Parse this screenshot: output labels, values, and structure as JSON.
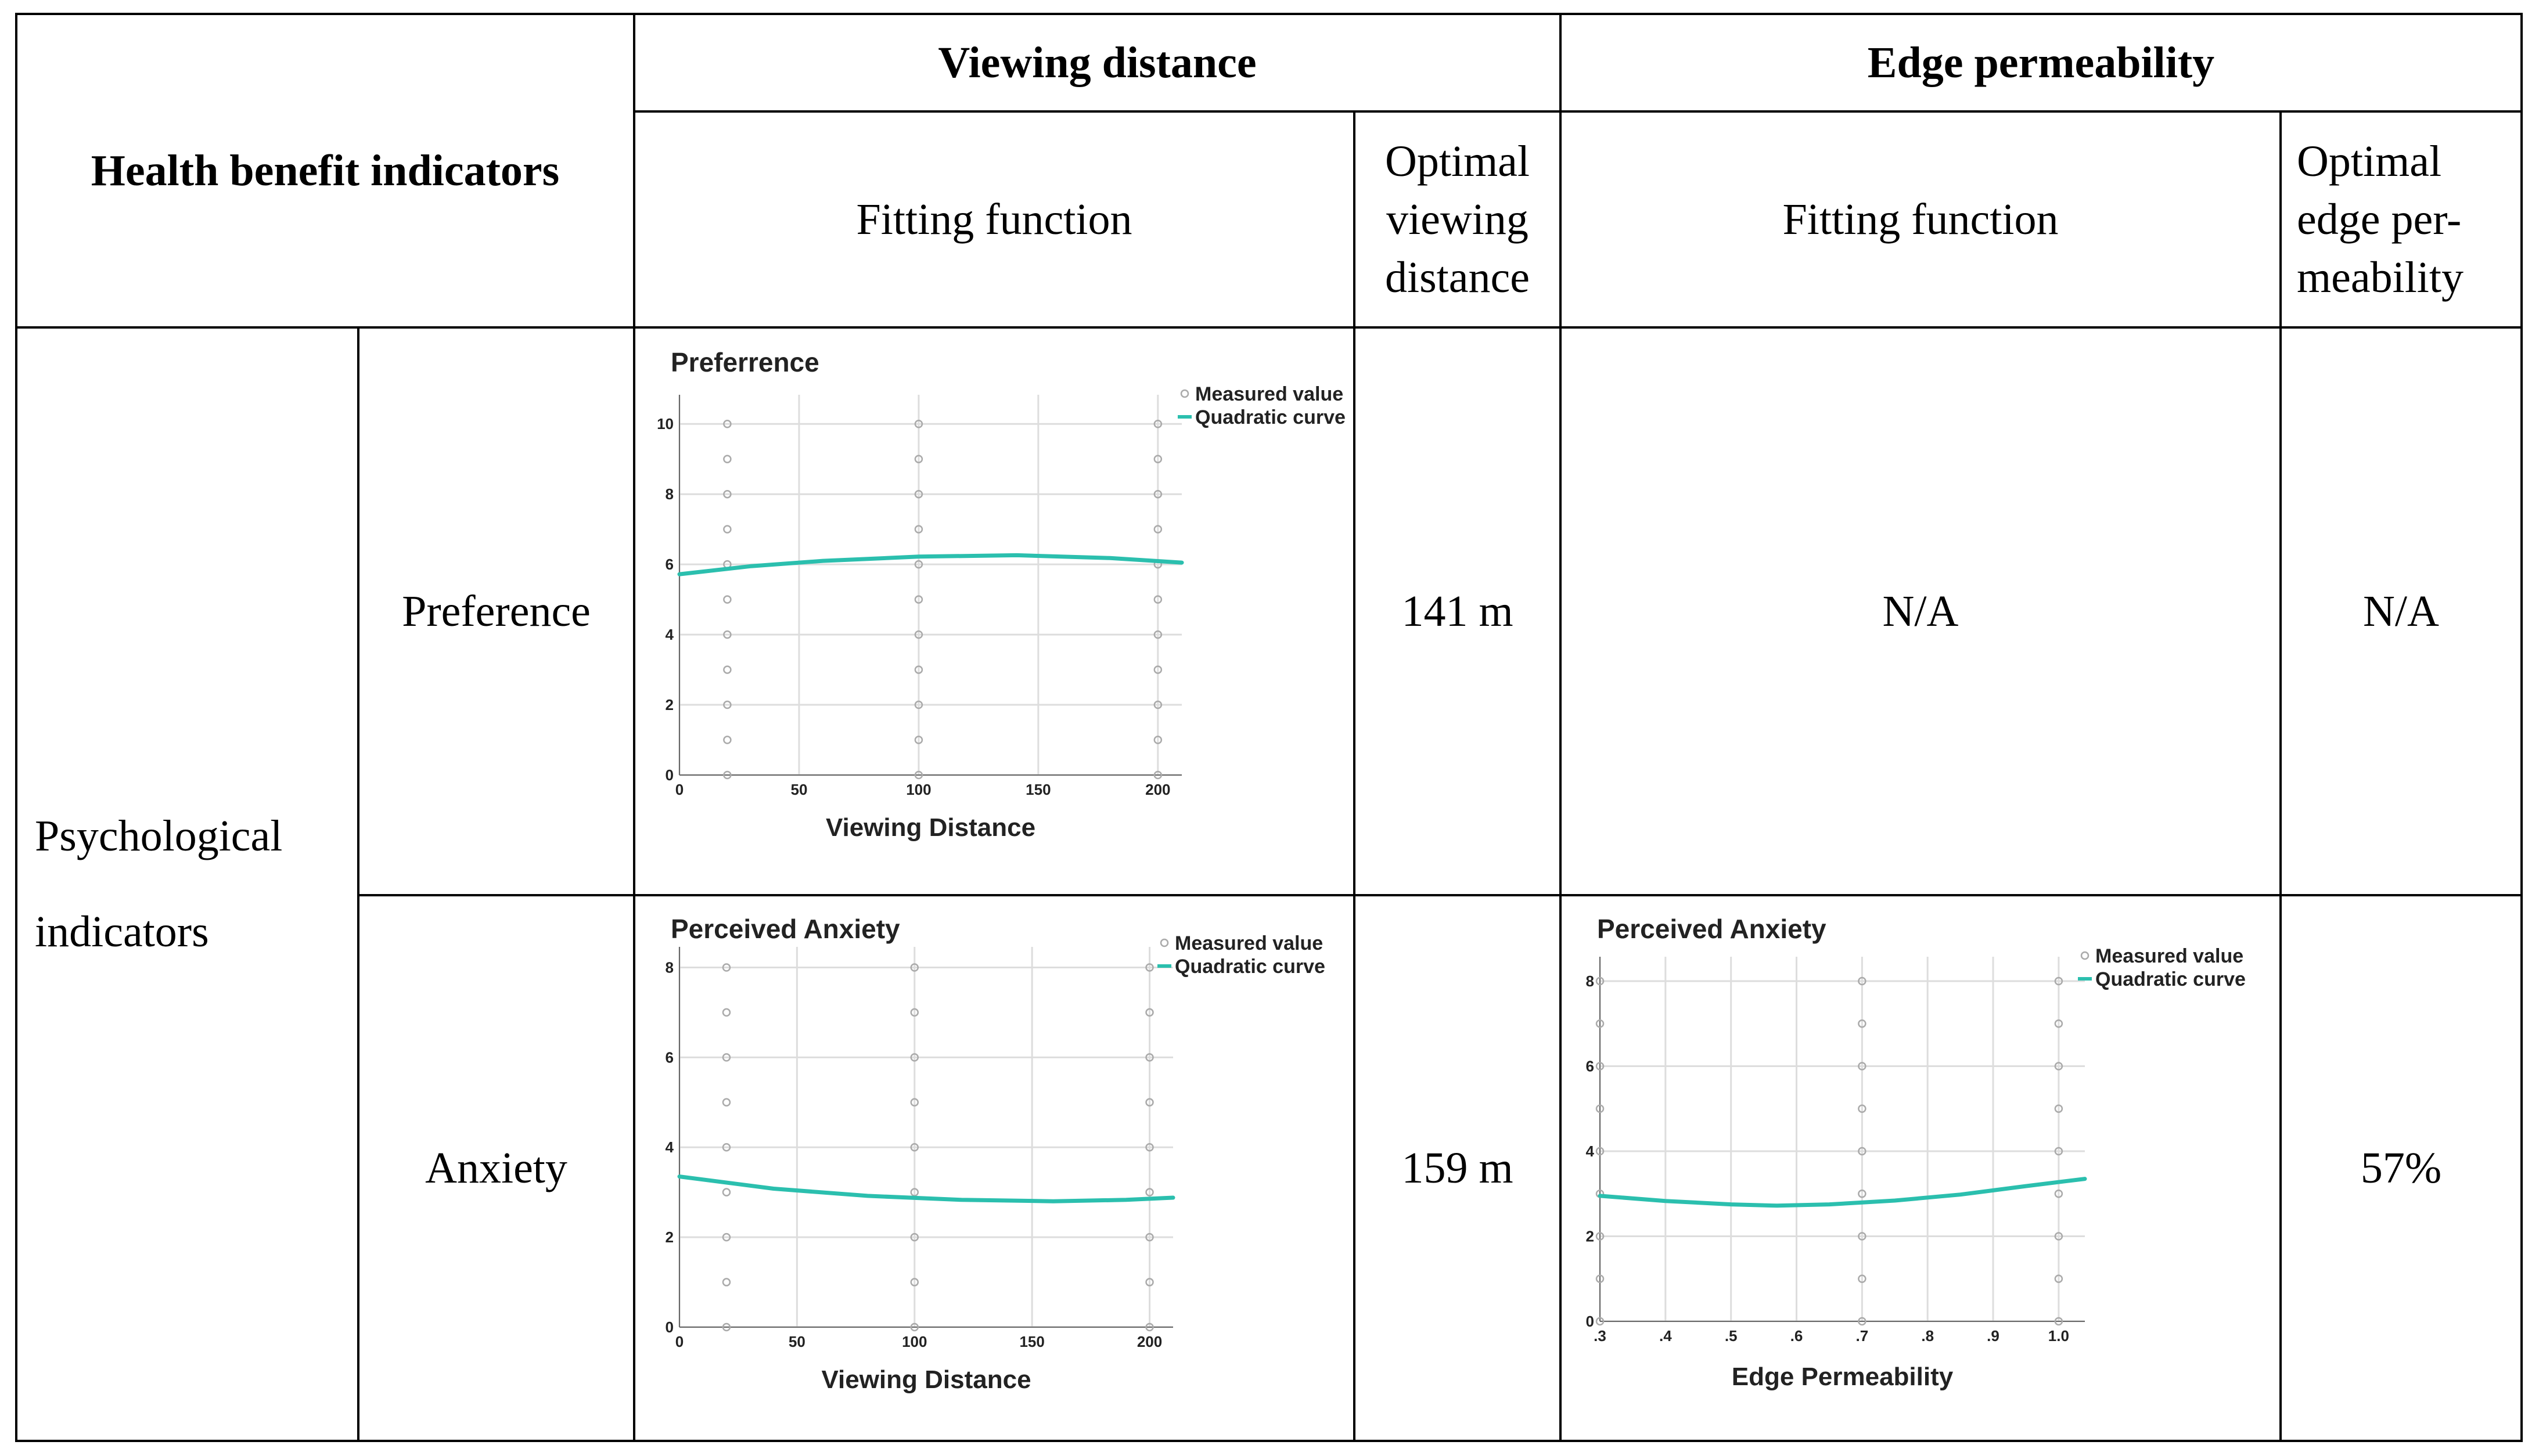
{
  "header": {
    "health_benefit_indicators": "Health benefit indicators",
    "viewing_distance": "Viewing distance",
    "edge_permeability": "Edge permeability",
    "fitting_function_vd": "Fitting function",
    "optimal_viewing_distance": [
      "Optimal",
      "viewing",
      "distance"
    ],
    "fitting_function_ep": "Fitting function",
    "optimal_edge_permeability": [
      "Optimal",
      "edge per-",
      "meability"
    ]
  },
  "rows": {
    "category": [
      "Psychological",
      "indicators"
    ],
    "preference": {
      "label": "Preference",
      "optimal_vd": "141 m",
      "fit_ep": "N/A",
      "optimal_ep": "N/A"
    },
    "anxiety": {
      "label": "Anxiety",
      "optimal_vd": "159 m",
      "optimal_ep": "57%"
    }
  },
  "colors": {
    "curve": "#2bbfae",
    "point": "#aaaaaa",
    "grid": "#dddddd"
  },
  "chart_data": [
    {
      "id": "pref_vd",
      "type": "scatter",
      "title": "Preferrence",
      "xlabel": "Viewing Distance",
      "ylabel": "",
      "xlim": [
        0,
        210
      ],
      "ylim": [
        0,
        10.5
      ],
      "xticks": [
        0,
        50,
        100,
        150,
        200
      ],
      "xtick_labels": [
        "0",
        "50",
        "100",
        "150",
        "200"
      ],
      "yticks": [
        0,
        2,
        4,
        6,
        8,
        10
      ],
      "ytick_labels": [
        "0",
        "2",
        "4",
        "6",
        "8",
        "10"
      ],
      "legend": [
        "Measured value",
        "Quadratic curve"
      ],
      "legend_position": "top-right",
      "points_x": [
        20,
        100,
        200
      ],
      "points_y": [
        0,
        1,
        2,
        3,
        4,
        5,
        6,
        7,
        8,
        9,
        10
      ],
      "curve": [
        [
          0,
          5.72
        ],
        [
          30,
          5.95
        ],
        [
          60,
          6.1
        ],
        [
          100,
          6.22
        ],
        [
          141,
          6.26
        ],
        [
          180,
          6.18
        ],
        [
          210,
          6.05
        ]
      ]
    },
    {
      "id": "anx_vd",
      "type": "scatter",
      "title": "Perceived Anxiety",
      "xlabel": "Viewing Distance",
      "ylabel": "",
      "xlim": [
        0,
        210
      ],
      "ylim": [
        0,
        8.2
      ],
      "xticks": [
        0,
        50,
        100,
        150,
        200
      ],
      "xtick_labels": [
        "0",
        "50",
        "100",
        "150",
        "200"
      ],
      "yticks": [
        0,
        2,
        4,
        6,
        8
      ],
      "ytick_labels": [
        "0",
        "2",
        "4",
        "6",
        "8"
      ],
      "legend": [
        "Measured value",
        "Quadratic curve"
      ],
      "legend_position": "top-right",
      "points_x": [
        20,
        100,
        200
      ],
      "points_y": [
        0,
        1,
        2,
        3,
        4,
        5,
        6,
        7,
        8
      ],
      "curve": [
        [
          0,
          3.35
        ],
        [
          40,
          3.08
        ],
        [
          80,
          2.92
        ],
        [
          120,
          2.83
        ],
        [
          159,
          2.8
        ],
        [
          190,
          2.83
        ],
        [
          210,
          2.88
        ]
      ]
    },
    {
      "id": "anx_ep",
      "type": "scatter",
      "title": "Perceived Anxiety",
      "xlabel": "Edge Permeability",
      "ylabel": "",
      "xlim": [
        0.3,
        1.04
      ],
      "ylim": [
        0,
        8.3
      ],
      "xticks": [
        0.3,
        0.4,
        0.5,
        0.6,
        0.7,
        0.8,
        0.9,
        1.0
      ],
      "xtick_labels": [
        ".3",
        ".4",
        ".5",
        ".6",
        ".7",
        ".8",
        ".9",
        "1.0"
      ],
      "yticks": [
        0,
        2,
        4,
        6,
        8
      ],
      "ytick_labels": [
        "0",
        "2",
        "4",
        "6",
        "8"
      ],
      "legend": [
        "Measured value",
        "Quadratic curve"
      ],
      "legend_position": "top-right",
      "points_x": [
        0.3,
        0.7,
        1.0
      ],
      "points_y": [
        0,
        1,
        2,
        3,
        4,
        5,
        6,
        7,
        8
      ],
      "curve": [
        [
          0.3,
          2.95
        ],
        [
          0.4,
          2.83
        ],
        [
          0.5,
          2.75
        ],
        [
          0.57,
          2.72
        ],
        [
          0.65,
          2.75
        ],
        [
          0.75,
          2.84
        ],
        [
          0.85,
          2.98
        ],
        [
          0.95,
          3.18
        ],
        [
          1.04,
          3.35
        ]
      ]
    }
  ]
}
